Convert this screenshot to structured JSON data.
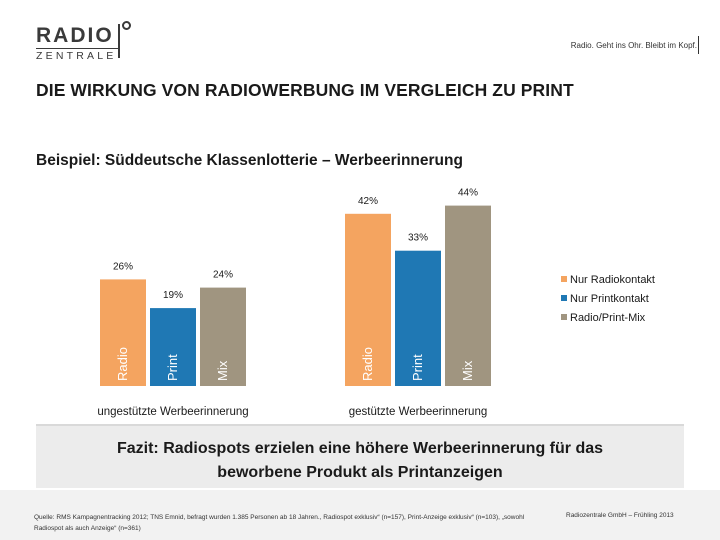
{
  "header": {
    "logo_top": "RADIO",
    "logo_bottom": "ZENTRALE",
    "tagline": "Radio. Geht ins Ohr. Bleibt im Kopf."
  },
  "title": "DIE WIRKUNG VON RADIOWERBUNG IM VERGLEICH ZU PRINT",
  "subtitle": "Beispiel: Süddeutsche Klassenlotterie – Werbeerinnerung",
  "chart_data": {
    "type": "bar",
    "categories": [
      "ungestützte Werbeerinnerung",
      "gestützte Werbeerinnerung"
    ],
    "series": [
      {
        "name": "Nur Radiokontakt",
        "bar_label": "Radio",
        "values": [
          26,
          42
        ],
        "labels": [
          "26%",
          "42%"
        ],
        "color": "#f4a460"
      },
      {
        "name": "Nur Printkontakt",
        "bar_label": "Print",
        "values": [
          19,
          33
        ],
        "labels": [
          "19%",
          "33%"
        ],
        "color": "#1f78b4"
      },
      {
        "name": "Radio/Print-Mix",
        "bar_label": "Mix",
        "values": [
          24,
          44
        ],
        "labels": [
          "24%",
          "44%"
        ],
        "color": "#a09580"
      }
    ],
    "ylim": [
      0,
      50
    ],
    "legend": "right",
    "grid": false
  },
  "fazit": "Fazit: Radiospots erzielen eine höhere Werbeerinnerung für das beworbene Produkt als Printanzeigen",
  "footer": {
    "source": "Quelle: RMS Kampagnentracking 2012; TNS Emnid, befragt wurden 1.385 Personen ab 18 Jahren., Radiospot exklusiv“ (n=157), Print-Anzeige exklusiv“ (n=103), „sowohl Radiospot als auch Anzeige“ (n=361)",
    "copyright": "Radiozentrale GmbH – Frühling 2013"
  }
}
